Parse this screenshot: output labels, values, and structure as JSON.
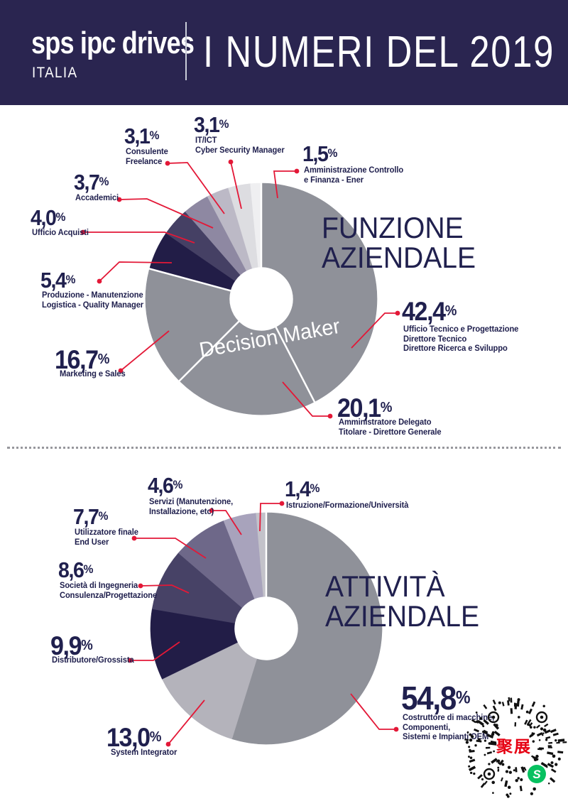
{
  "header": {
    "logo_main": "sps ipc drives",
    "logo_sub": "ITALIA",
    "title": "I NUMERI DEL 2019"
  },
  "colors": {
    "header_bg": "#2a2550",
    "navy_text": "#20204e",
    "leader_red": "#e31837",
    "gray_main": "#8f9199"
  },
  "chart_data": [
    {
      "type": "donut",
      "title": "FUNZIONE AZIENDALE",
      "title_lines": [
        "FUNZIONE",
        "AZIENDALE"
      ],
      "center_label": "Decision Maker",
      "unit": "%",
      "start_angle_deg": 0,
      "white_dividers_deg": [
        0,
        152.64,
        225.0,
        285.12
      ],
      "slices": [
        {
          "value": 42.4,
          "display": "42,4",
          "label": [
            "Ufficio Tecnico e Progettazione",
            "Direttore Tecnico",
            "Direttore Ricerca e Sviluppo"
          ],
          "color": "#8f9199"
        },
        {
          "value": 20.1,
          "display": "20,1",
          "label": [
            "Amministratore Delegato",
            "Titolare - Direttore Generale"
          ],
          "color": "#8f9199"
        },
        {
          "value": 16.7,
          "display": "16,7",
          "label": [
            "Marketing e Sales"
          ],
          "color": "#8f9199"
        },
        {
          "value": 5.4,
          "display": "5,4",
          "label": [
            "Produzione - Manutenzione",
            "Logistica - Quality Manager"
          ],
          "color": "#221d47"
        },
        {
          "value": 4.0,
          "display": "4,0",
          "label": [
            "Ufficio Acquisti"
          ],
          "color": "#454064"
        },
        {
          "value": 3.7,
          "display": "3,7",
          "label": [
            "Accademici"
          ],
          "color": "#8e88a2"
        },
        {
          "value": 3.1,
          "display": "3,1",
          "label": [
            "Consulente",
            "Freelance"
          ],
          "color": "#bcb9c6"
        },
        {
          "value": 3.1,
          "display": "3,1",
          "label": [
            "IT/ICT",
            "Cyber Security Manager"
          ],
          "color": "#dddde1"
        },
        {
          "value": 1.5,
          "display": "1,5",
          "label": [
            "Amministrazione Controllo",
            "e Finanza - Ener"
          ],
          "color": "#efeff1"
        }
      ]
    },
    {
      "type": "donut",
      "title": "ATTIVITÀ AZIENDALE",
      "title_lines": [
        "ATTIVITÀ",
        "AZIENDALE"
      ],
      "center_label": "",
      "unit": "%",
      "start_angle_deg": 0,
      "white_dividers_deg": [
        0
      ],
      "slices": [
        {
          "value": 54.8,
          "display": "54,8",
          "label": [
            "Costruttore di macchine,",
            "Componenti,",
            "Sistemi e Impianti OEM"
          ],
          "color": "#8f9199"
        },
        {
          "value": 13.0,
          "display": "13,0",
          "label": [
            "System Integrator"
          ],
          "color": "#b4b3bb"
        },
        {
          "value": 9.9,
          "display": "9,9",
          "label": [
            "Distributore/Grossista"
          ],
          "color": "#221d47"
        },
        {
          "value": 8.6,
          "display": "8,6",
          "label": [
            "Società di Ingegneria",
            "Consulenza/Progettazione"
          ],
          "color": "#474266"
        },
        {
          "value": 7.7,
          "display": "7,7",
          "label": [
            "Utilizzatore finale",
            "End User"
          ],
          "color": "#6e6889"
        },
        {
          "value": 4.6,
          "display": "4,6",
          "label": [
            "Servizi (Manutenzione,",
            "Installazione, etc)"
          ],
          "color": "#a8a3bc"
        },
        {
          "value": 1.4,
          "display": "1,4",
          "label": [
            "Istruzione/Formazione/Università"
          ],
          "color": "#c3c2ca"
        }
      ]
    }
  ],
  "qr": {
    "overlay_text": "聚展",
    "icon_glyph": "S"
  }
}
